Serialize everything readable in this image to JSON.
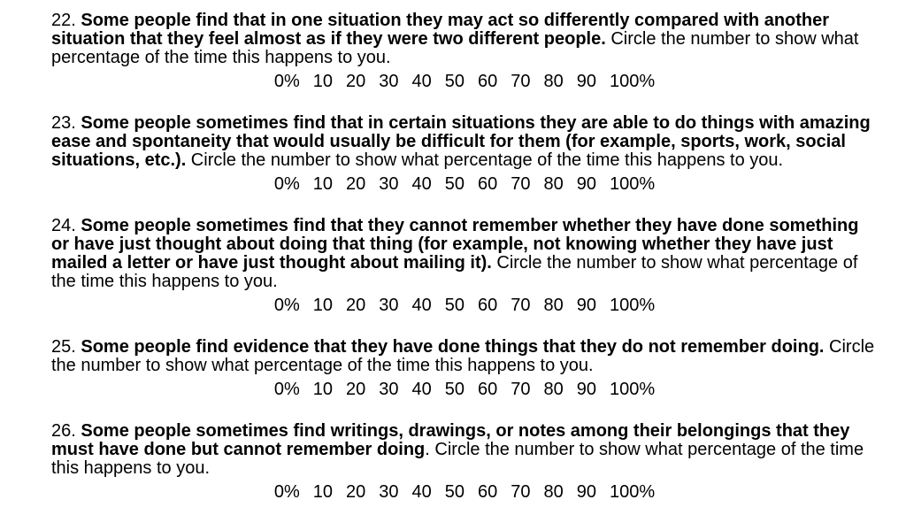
{
  "colors": {
    "background": "#ffffff",
    "text": "#000000"
  },
  "questions": [
    {
      "number": "22.",
      "statement": "Some people find that in one situation they may act so differently compared with another situation that they feel almost as if they were two different people.",
      "instruction": " Circle the number to show what percentage of the time this happens to you.",
      "scale": [
        "0%",
        "10",
        "20",
        "30",
        "40",
        "50",
        "60",
        "70",
        "80",
        "90",
        "100%"
      ]
    },
    {
      "number": "23.",
      "statement": "Some people sometimes find that in certain situations they are able to do things with amazing ease and spontaneity that would usually be difficult for them (for example, sports, work, social situations, etc.).",
      "instruction": " Circle the number to show what percentage of the time this happens to you.",
      "scale": [
        "0%",
        "10",
        "20",
        "30",
        "40",
        "50",
        "60",
        "70",
        "80",
        "90",
        "100%"
      ]
    },
    {
      "number": "24.",
      "statement": "Some people sometimes find that they cannot remember whether they have done something or have just thought about doing that thing (for example, not knowing whether they have just mailed a letter or have just thought about mailing it).",
      "instruction": " Circle the number to show what percentage of the time this happens to you.",
      "scale": [
        "0%",
        "10",
        "20",
        "30",
        "40",
        "50",
        "60",
        "70",
        "80",
        "90",
        "100%"
      ]
    },
    {
      "number": "25.",
      "statement": "Some people find evidence that they have done things that they do not remember doing.",
      "instruction": " Circle the number to show what percentage of the time this happens to you.",
      "scale": [
        "0%",
        "10",
        "20",
        "30",
        "40",
        "50",
        "60",
        "70",
        "80",
        "90",
        "100%"
      ]
    },
    {
      "number": "26.",
      "statement": "Some people sometimes find writings, drawings, or notes among their belongings that they must have done but cannot remember doing",
      "instruction": ". Circle the number to show what percentage of the time this happens to you.",
      "scale": [
        "0%",
        "10",
        "20",
        "30",
        "40",
        "50",
        "60",
        "70",
        "80",
        "90",
        "100%"
      ]
    }
  ]
}
